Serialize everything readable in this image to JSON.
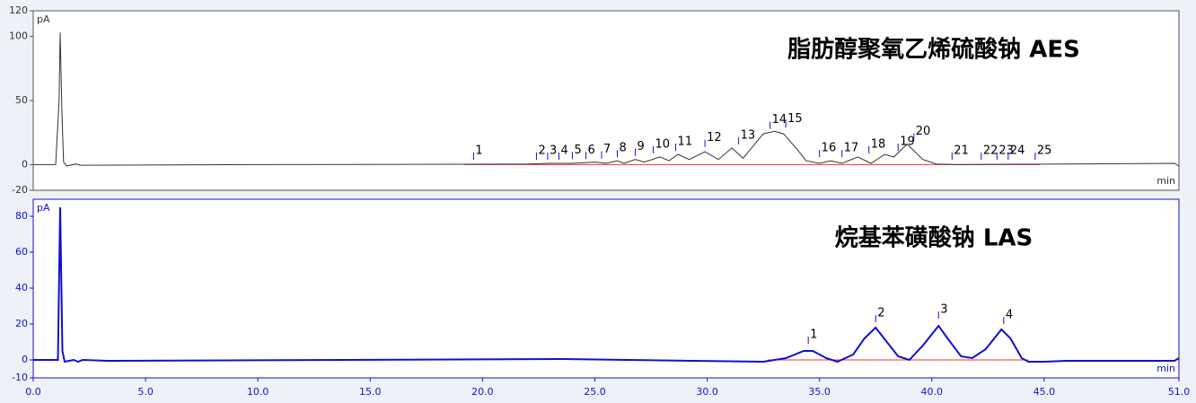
{
  "chart_data": [
    {
      "type": "line",
      "title": "脂肪醇聚氧乙烯硫酸钠 AES",
      "y_unit": "pA",
      "x_unit": "min",
      "xlim": [
        0,
        51
      ],
      "ylim": [
        -20,
        120
      ],
      "yticks": [
        120,
        100,
        50,
        0,
        -20
      ],
      "x": [
        0,
        1.0,
        1.15,
        1.2,
        1.28,
        1.35,
        1.5,
        1.9,
        2.1,
        10,
        19.5,
        22,
        23,
        24,
        25,
        25.5,
        26,
        26.3,
        26.8,
        27.2,
        27.9,
        28.3,
        28.7,
        29.2,
        29.9,
        30.5,
        31.1,
        31.6,
        32.5,
        33,
        33.4,
        34,
        34.4,
        35,
        35.5,
        36,
        36.7,
        37.3,
        37.9,
        38.3,
        38.9,
        39.6,
        40.2,
        41,
        50.8,
        51
      ],
      "series": [
        {
          "color": "#333333",
          "values": [
            0,
            0,
            50,
            103,
            40,
            2,
            -1,
            0.5,
            -0.5,
            0,
            0.3,
            0.5,
            1,
            1,
            2,
            1,
            3,
            1,
            4,
            2,
            6,
            3,
            8,
            4,
            10,
            4,
            13,
            5,
            24,
            26,
            24,
            12,
            3,
            1,
            3,
            1,
            6,
            1,
            8,
            6,
            16,
            4,
            0.5,
            0,
            1,
            -1
          ]
        }
      ],
      "baseline_range": [
        19.2,
        44.8
      ],
      "baseline_color": "#ff3030",
      "peaks": [
        {
          "label": "1",
          "time": 19.6,
          "height": 1
        },
        {
          "label": "2",
          "time": 22.4,
          "height": 1
        },
        {
          "label": "3",
          "time": 22.9,
          "height": 1
        },
        {
          "label": "4",
          "time": 23.4,
          "height": 1
        },
        {
          "label": "5",
          "time": 24.0,
          "height": 1.5
        },
        {
          "label": "6",
          "time": 24.6,
          "height": 1.5
        },
        {
          "label": "7",
          "time": 25.3,
          "height": 2
        },
        {
          "label": "8",
          "time": 26.0,
          "height": 3
        },
        {
          "label": "9",
          "time": 26.8,
          "height": 4
        },
        {
          "label": "10",
          "time": 27.6,
          "height": 6
        },
        {
          "label": "11",
          "time": 28.6,
          "height": 8
        },
        {
          "label": "12",
          "time": 29.9,
          "height": 11
        },
        {
          "label": "13",
          "time": 31.4,
          "height": 13
        },
        {
          "label": "14",
          "time": 32.8,
          "height": 25
        },
        {
          "label": "15",
          "time": 33.5,
          "height": 26
        },
        {
          "label": "16",
          "time": 35.0,
          "height": 3
        },
        {
          "label": "17",
          "time": 36.0,
          "height": 3
        },
        {
          "label": "18",
          "time": 37.2,
          "height": 6
        },
        {
          "label": "19",
          "time": 38.5,
          "height": 8
        },
        {
          "label": "20",
          "time": 39.2,
          "height": 16
        },
        {
          "label": "21",
          "time": 40.9,
          "height": 1
        },
        {
          "label": "22",
          "time": 42.2,
          "height": 1
        },
        {
          "label": "23",
          "time": 42.9,
          "height": 1
        },
        {
          "label": "24",
          "time": 43.4,
          "height": 1
        },
        {
          "label": "25",
          "time": 44.6,
          "height": 1
        }
      ]
    },
    {
      "type": "line",
      "title": "烷基苯磺酸钠 LAS",
      "y_unit": "pA",
      "x_unit": "min",
      "xlim": [
        0,
        51
      ],
      "ylim": [
        -10,
        89.5
      ],
      "yticks": [
        80,
        60,
        40,
        20,
        0,
        -10
      ],
      "xticks": [
        {
          "value": 0,
          "label": "0.0"
        },
        {
          "value": 5,
          "label": "5.0"
        },
        {
          "value": 10,
          "label": "10.0"
        },
        {
          "value": 15,
          "label": "15.0"
        },
        {
          "value": 20,
          "label": "20.0"
        },
        {
          "value": 25,
          "label": "25.0"
        },
        {
          "value": 30,
          "label": "30.0"
        },
        {
          "value": 35,
          "label": "35.0"
        },
        {
          "value": 40,
          "label": "40.0"
        },
        {
          "value": 45,
          "label": "45.0"
        },
        {
          "value": 51,
          "label": "51.0"
        }
      ],
      "x": [
        0,
        1.1,
        1.2,
        1.3,
        1.4,
        1.8,
        2,
        2.2,
        3.3,
        23.5,
        32.5,
        33.5,
        34.3,
        34.7,
        35.3,
        35.8,
        36.5,
        37,
        37.5,
        38,
        38.5,
        39,
        39.6,
        40.3,
        40.7,
        41.3,
        41.8,
        42.4,
        43.1,
        43.5,
        44,
        44.3,
        45,
        46,
        50.8,
        51
      ],
      "series": [
        {
          "color": "#1010d0",
          "values": [
            0,
            0,
            85,
            5,
            -1,
            0,
            -1,
            0,
            -0.5,
            0.5,
            -1,
            1,
            5,
            5,
            1,
            -1,
            3,
            12,
            18,
            10,
            2,
            0,
            8,
            19,
            12,
            2,
            1,
            6,
            17,
            12,
            1,
            -1,
            -1,
            -0.5,
            -0.5,
            1
          ]
        }
      ],
      "baseline_range": [
        32.7,
        44.3
      ],
      "baseline_color": "#ff3030",
      "peaks": [
        {
          "label": "1",
          "time": 34.5,
          "height": 7
        },
        {
          "label": "2",
          "time": 37.5,
          "height": 19
        },
        {
          "label": "3",
          "time": 40.3,
          "height": 21
        },
        {
          "label": "4",
          "time": 43.2,
          "height": 18
        }
      ]
    }
  ]
}
